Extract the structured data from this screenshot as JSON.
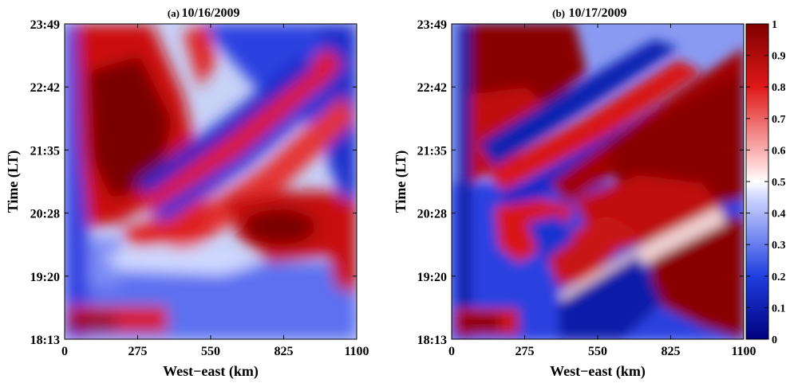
{
  "chart_data": [
    {
      "type": "heatmap",
      "panel_label": "(a)",
      "title": "10/16/2009",
      "xlabel": "West−east (km)",
      "ylabel": "Time (LT)",
      "x_ticks": [
        "0",
        "275",
        "550",
        "825",
        "1100"
      ],
      "y_ticks": [
        "18:13",
        "19:20",
        "20:28",
        "21:35",
        "22:42",
        "23:49"
      ],
      "xlim": [
        0,
        1100
      ],
      "ylim": [
        "18:13",
        "23:49"
      ],
      "colormap": "blue-white-red",
      "clim": [
        0,
        1
      ],
      "features": [
        {
          "desc": "broad red band",
          "x_range": [
            100,
            450
          ],
          "t_range": [
            "20:28",
            "23:49"
          ],
          "value": 0.9
        },
        {
          "desc": "diagonal blue stripes propagating westward",
          "x_range": [
            200,
            1100
          ],
          "t_range": [
            "20:40",
            "23:49"
          ],
          "value": 0.1
        },
        {
          "desc": "red patch",
          "x_range": [
            650,
            1000
          ],
          "t_range": [
            "19:50",
            "20:50"
          ],
          "value": 0.95
        },
        {
          "desc": "red band near bottom",
          "x_range": [
            30,
            420
          ],
          "t_range": [
            "18:13",
            "18:50"
          ],
          "value": 0.9
        },
        {
          "desc": "blue region",
          "x_range": [
            0,
            1100
          ],
          "t_range": [
            "18:13",
            "19:40"
          ],
          "value": 0.2
        }
      ]
    },
    {
      "type": "heatmap",
      "panel_label": "(b)",
      "title": "10/17/2009",
      "xlabel": "West−east (km)",
      "ylabel": "Time (LT)",
      "x_ticks": [
        "0",
        "275",
        "550",
        "825",
        "1100"
      ],
      "y_ticks": [
        "18:13",
        "19:20",
        "20:28",
        "21:35",
        "22:42",
        "23:49"
      ],
      "xlim": [
        0,
        1100
      ],
      "ylim": [
        "18:13",
        "23:49"
      ],
      "colormap": "blue-white-red",
      "clim": [
        0,
        1
      ],
      "colorbar_ticks": [
        "0",
        "0.1",
        "0.2",
        "0.3",
        "0.4",
        "0.5",
        "0.6",
        "0.7",
        "0.8",
        "0.9",
        "1"
      ],
      "features": [
        {
          "desc": "dark red region upper left",
          "x_range": [
            40,
            350
          ],
          "t_range": [
            "22:30",
            "23:49"
          ],
          "value": 0.95
        },
        {
          "desc": "alternating diagonal red/blue stripes",
          "x_range": [
            50,
            1100
          ],
          "t_range": [
            "20:30",
            "23:30"
          ],
          "value": 0.5
        },
        {
          "desc": "large dark red region right",
          "x_range": [
            600,
            1100
          ],
          "t_range": [
            "20:00",
            "23:40"
          ],
          "value": 0.95
        },
        {
          "desc": "dark red region lower right",
          "x_range": [
            700,
            1100
          ],
          "t_range": [
            "18:40",
            "20:00"
          ],
          "value": 0.95
        },
        {
          "desc": "blue region lower middle",
          "x_range": [
            300,
            750
          ],
          "t_range": [
            "18:13",
            "19:40"
          ],
          "value": 0.1
        }
      ]
    }
  ]
}
